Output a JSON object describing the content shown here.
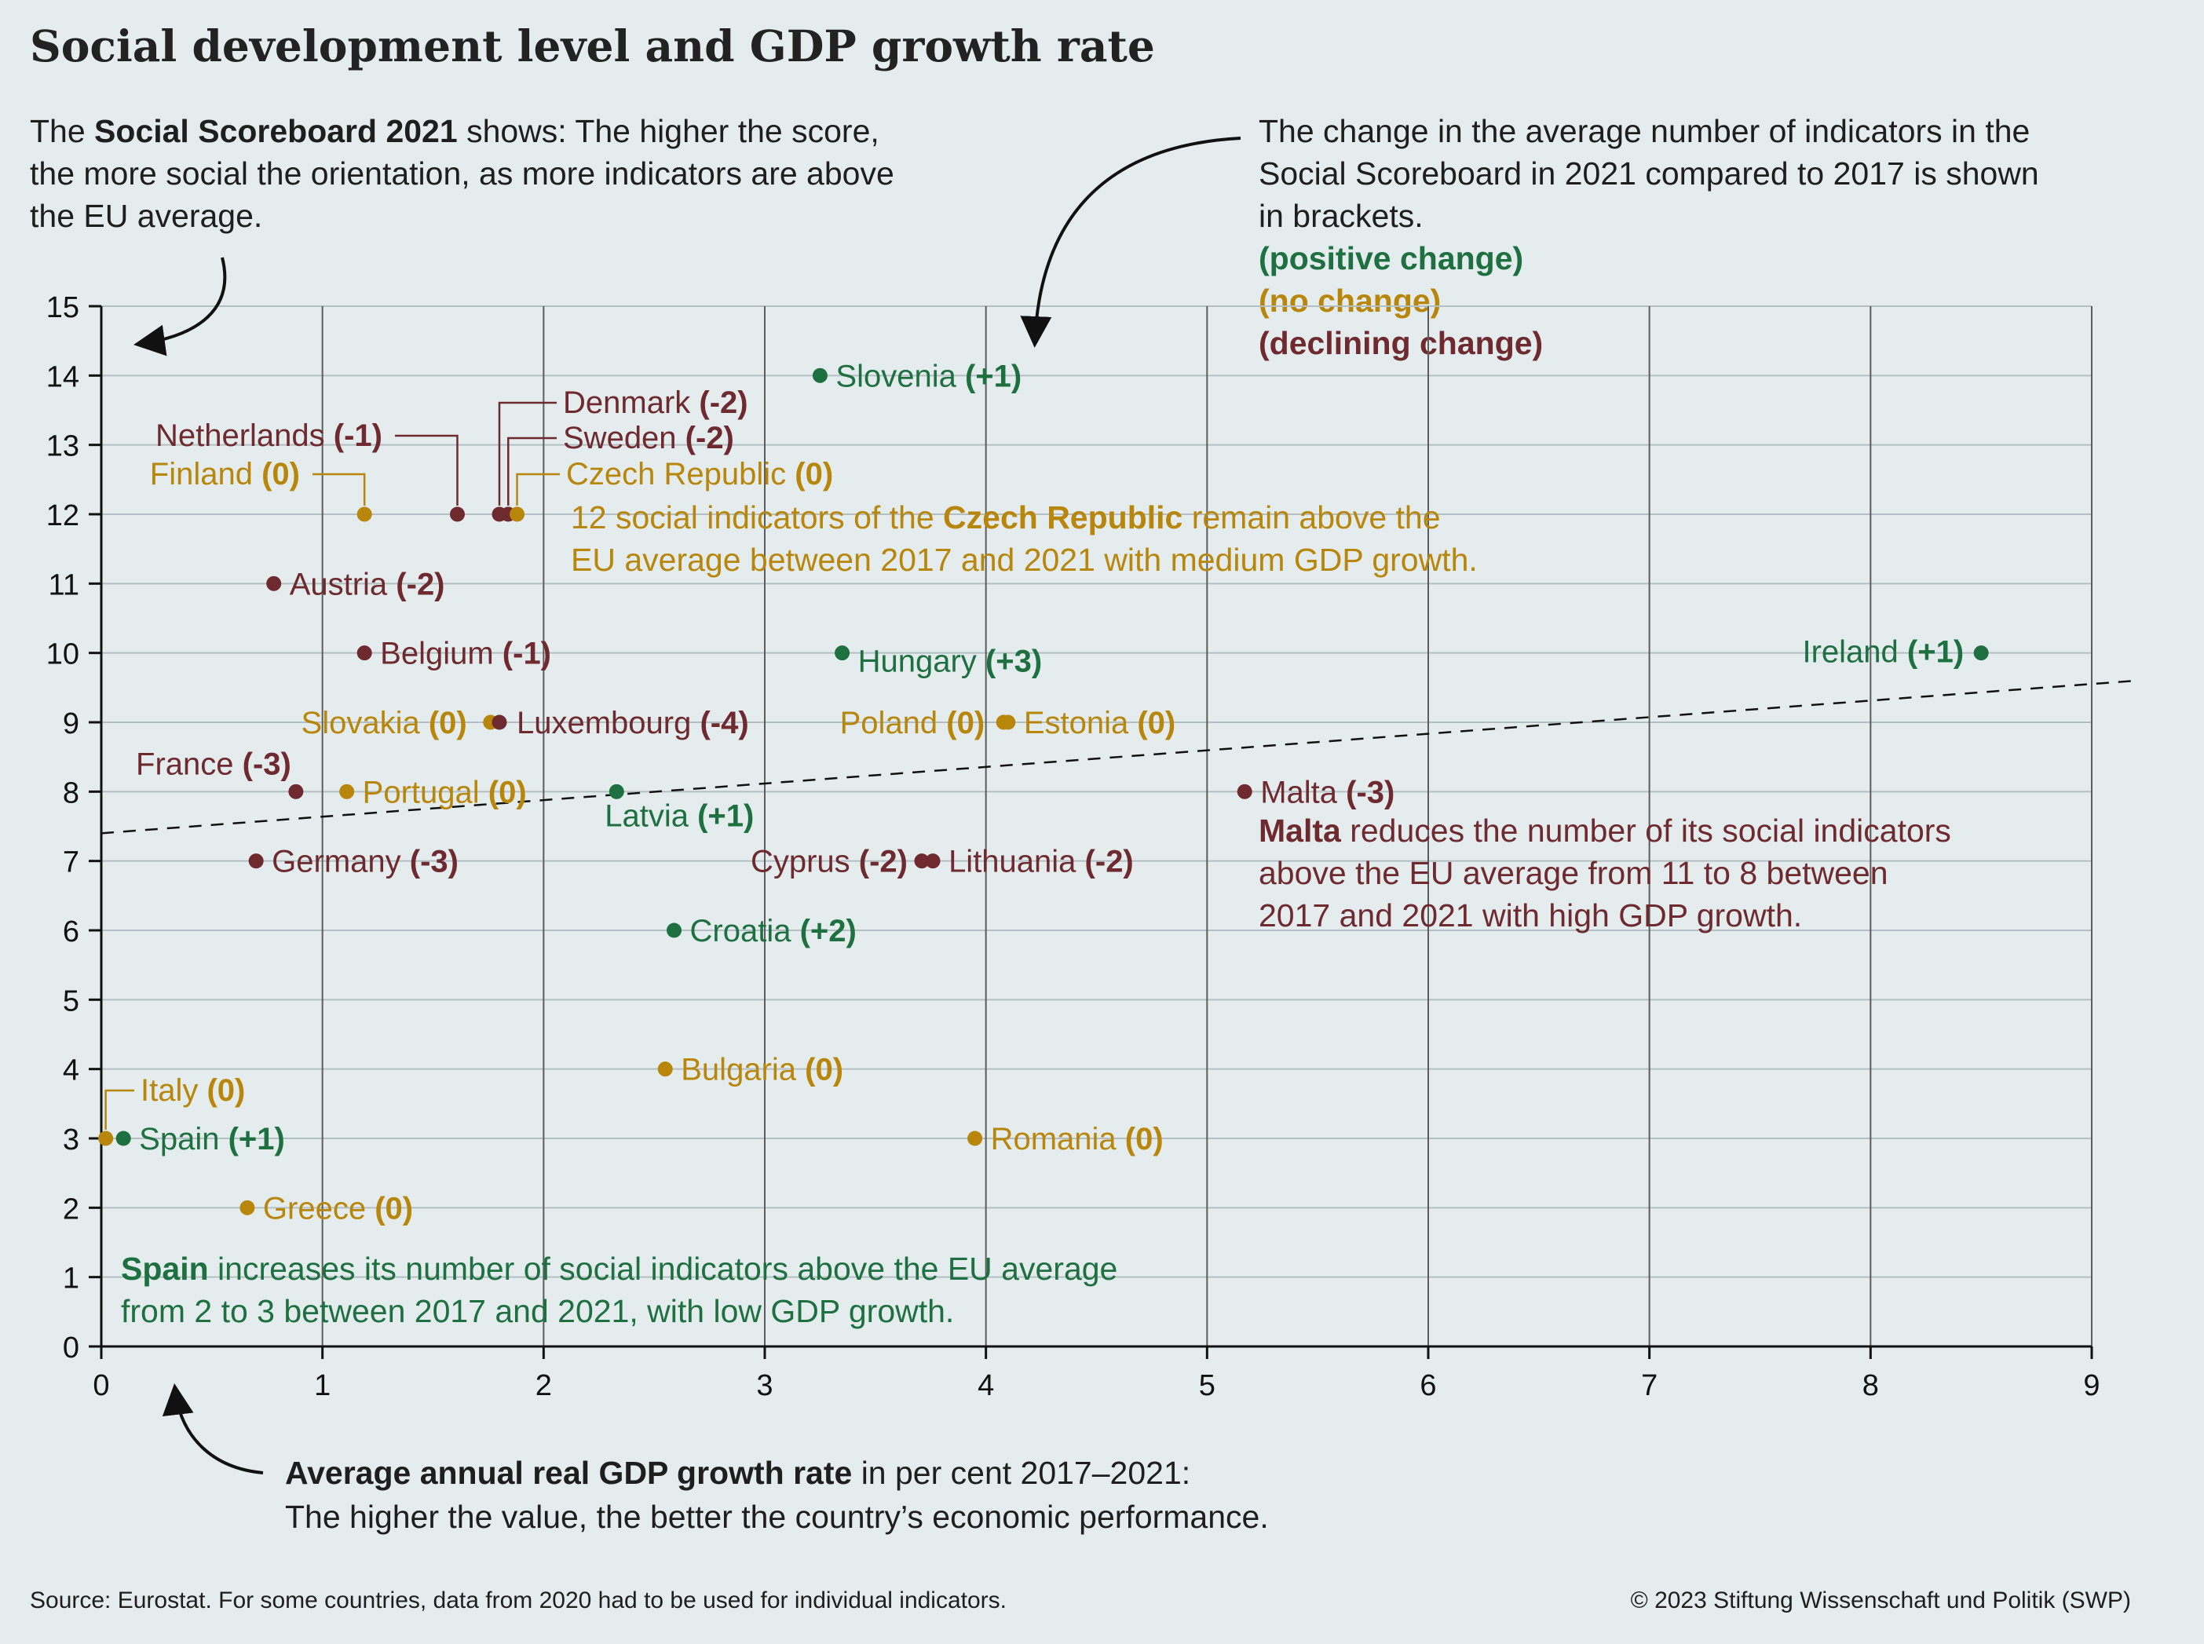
{
  "title": "Social development level and GDP growth rate",
  "note_left": {
    "pre": "The ",
    "bold": "Social Scoreboard 2021",
    "post": " shows: The higher the score, the more social the orientation, as more indicators are above the EU average."
  },
  "note_right": "The change in the average number of indicators in the Social Scoreboard in 2021 compared to 2017 is shown in brackets.",
  "legend": {
    "positive": "(positive change)",
    "none": "(no change)",
    "declining": "(declining change)"
  },
  "x_note": {
    "bold": "Average annual real GDP growth rate",
    "post": " in per cent 2017–2021:",
    "line2": "The higher the value, the better the country’s economic performance."
  },
  "source": "Source: Eurostat. For some countries, data from 2020 had to be used for individual indicators.",
  "copyright": "© 2023 Stiftung Wissenschaft und Politik (SWP)",
  "colors": {
    "positive": "#1e7040",
    "none": "#b8860b",
    "declining": "#6e2a2e"
  },
  "chart_data": {
    "type": "scatter",
    "xlim": [
      0,
      9
    ],
    "ylim": [
      0,
      15
    ],
    "x_ticks": [
      "0",
      "1",
      "2",
      "3",
      "4",
      "5",
      "6",
      "7",
      "8",
      "9"
    ],
    "y_ticks": [
      "0",
      "1",
      "2",
      "3",
      "4",
      "5",
      "6",
      "7",
      "8",
      "9",
      "10",
      "11",
      "12",
      "13",
      "14",
      "15"
    ],
    "grid": "vertical and horizontal",
    "trendline": {
      "from": [
        0,
        7.4
      ],
      "to": [
        9.2,
        9.6
      ],
      "style": "dashed"
    },
    "points": [
      {
        "country": "Slovenia",
        "change": "(+1)",
        "x": 3.25,
        "y": 14,
        "cat": "positive"
      },
      {
        "country": "Denmark",
        "change": "(-2)",
        "x": 1.8,
        "y": 12,
        "cat": "declining"
      },
      {
        "country": "Sweden",
        "change": "(-2)",
        "x": 1.84,
        "y": 12,
        "cat": "declining"
      },
      {
        "country": "Netherlands",
        "change": "(-1)",
        "x": 1.61,
        "y": 12,
        "cat": "declining"
      },
      {
        "country": "Finland",
        "change": "(0)",
        "x": 1.19,
        "y": 12,
        "cat": "none"
      },
      {
        "country": "Czech Republic",
        "change": "(0)",
        "x": 1.88,
        "y": 12,
        "cat": "none"
      },
      {
        "country": "Austria",
        "change": "(-2)",
        "x": 0.78,
        "y": 11,
        "cat": "declining"
      },
      {
        "country": "Belgium",
        "change": "(-1)",
        "x": 1.19,
        "y": 10,
        "cat": "declining"
      },
      {
        "country": "Hungary",
        "change": "(+3)",
        "x": 3.35,
        "y": 10,
        "cat": "positive"
      },
      {
        "country": "Ireland",
        "change": "(+1)",
        "x": 8.5,
        "y": 10,
        "cat": "positive"
      },
      {
        "country": "Slovakia",
        "change": "(0)",
        "x": 1.76,
        "y": 9,
        "cat": "none"
      },
      {
        "country": "Luxembourg",
        "change": "(-4)",
        "x": 1.8,
        "y": 9,
        "cat": "declining"
      },
      {
        "country": "Poland",
        "change": "(0)",
        "x": 4.08,
        "y": 9,
        "cat": "none"
      },
      {
        "country": "Estonia",
        "change": "(0)",
        "x": 4.1,
        "y": 9,
        "cat": "none"
      },
      {
        "country": "France",
        "change": "(-3)",
        "x": 0.88,
        "y": 8,
        "cat": "declining"
      },
      {
        "country": "Portugal",
        "change": "(0)",
        "x": 1.11,
        "y": 8,
        "cat": "none"
      },
      {
        "country": "Latvia",
        "change": "(+1)",
        "x": 2.33,
        "y": 8,
        "cat": "positive"
      },
      {
        "country": "Malta",
        "change": "(-3)",
        "x": 5.17,
        "y": 8,
        "cat": "declining"
      },
      {
        "country": "Germany",
        "change": "(-3)",
        "x": 0.7,
        "y": 7,
        "cat": "declining"
      },
      {
        "country": "Cyprus",
        "change": "(-2)",
        "x": 3.71,
        "y": 7,
        "cat": "declining"
      },
      {
        "country": "Lithuania",
        "change": "(-2)",
        "x": 3.76,
        "y": 7,
        "cat": "declining"
      },
      {
        "country": "Croatia",
        "change": "(+2)",
        "x": 2.59,
        "y": 6,
        "cat": "positive"
      },
      {
        "country": "Bulgaria",
        "change": "(0)",
        "x": 2.55,
        "y": 4,
        "cat": "none"
      },
      {
        "country": "Italy",
        "change": "(0)",
        "x": 0.02,
        "y": 3,
        "cat": "none"
      },
      {
        "country": "Spain",
        "change": "(+1)",
        "x": 0.1,
        "y": 3,
        "cat": "positive"
      },
      {
        "country": "Romania",
        "change": "(0)",
        "x": 3.95,
        "y": 3,
        "cat": "none"
      },
      {
        "country": "Greece",
        "change": "(0)",
        "x": 0.66,
        "y": 2,
        "cat": "none"
      }
    ],
    "annotations": [
      {
        "id": "czech",
        "cat": "none",
        "lines": [
          {
            "pre": "12 social indicators of the ",
            "bold": "Czech Republic",
            "post": " remain above the"
          },
          {
            "pre": "EU average between 2017 and 2021 with medium GDP growth.",
            "bold": "",
            "post": ""
          }
        ]
      },
      {
        "id": "malta",
        "cat": "declining",
        "lines": [
          {
            "pre": "",
            "bold": "Malta",
            "post": " reduces the number of its social indicators"
          },
          {
            "pre": "above the EU average from 11 to 8 between",
            "bold": "",
            "post": ""
          },
          {
            "pre": "2017 and 2021 with high GDP growth.",
            "bold": "",
            "post": ""
          }
        ]
      },
      {
        "id": "spain",
        "cat": "positive",
        "lines": [
          {
            "pre": "",
            "bold": "Spain",
            "post": " increases its number of social indicators above the EU average"
          },
          {
            "pre": "from 2 to 3 between 2017 and 2021, with low GDP growth.",
            "bold": "",
            "post": ""
          }
        ]
      }
    ]
  }
}
